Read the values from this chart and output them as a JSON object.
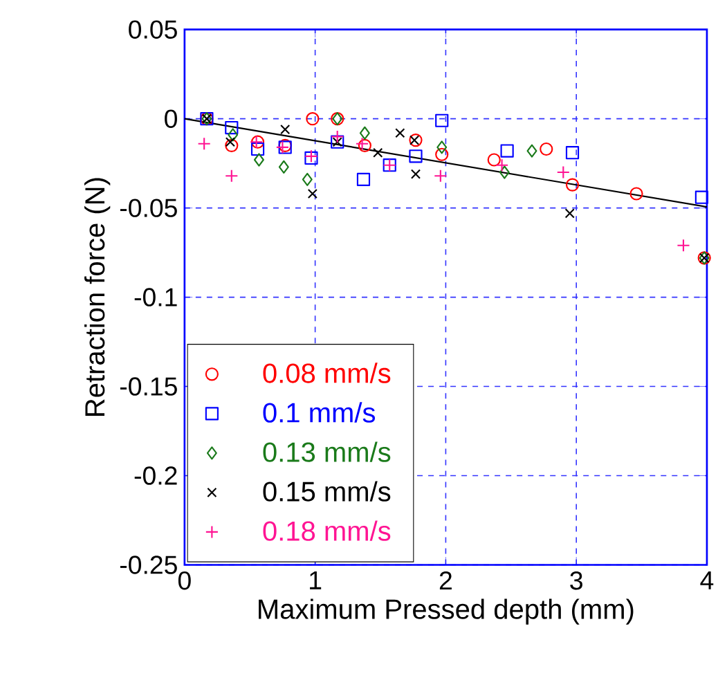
{
  "chart_data": {
    "type": "scatter",
    "xlabel": "Maximum Pressed depth (mm)",
    "ylabel": "Retraction force (N)",
    "xlim": [
      0,
      4
    ],
    "xticks": [
      0,
      1,
      2,
      3,
      4
    ],
    "ylim": [
      -0.25,
      0.05
    ],
    "yticks": [
      -0.25,
      -0.2,
      -0.15,
      -0.1,
      -0.05,
      0,
      0.05
    ],
    "grid": true,
    "legend": "bottom left",
    "series": [
      {
        "name": "0.08 mm/s",
        "color": "#ff0000",
        "marker": "circle",
        "x": [
          0.17,
          0.36,
          0.56,
          0.77,
          0.98,
          1.17,
          1.38,
          1.77,
          1.97,
          2.37,
          2.77,
          2.97,
          3.46,
          3.98
        ],
        "values": [
          0,
          -0.015,
          -0.013,
          -0.015,
          0,
          0,
          -0.015,
          -0.012,
          -0.02,
          -0.023,
          -0.017,
          -0.037,
          -0.042,
          -0.078
        ]
      },
      {
        "name": "0.1 mm/s",
        "color": "#0000ff",
        "marker": "square",
        "x": [
          0.17,
          0.36,
          0.56,
          0.77,
          0.97,
          1.17,
          1.37,
          1.57,
          1.77,
          1.97,
          2.47,
          2.97,
          3.96
        ],
        "values": [
          0,
          -0.005,
          -0.017,
          -0.016,
          -0.022,
          -0.013,
          -0.034,
          -0.026,
          -0.021,
          -0.001,
          -0.018,
          -0.019,
          -0.044
        ]
      },
      {
        "name": "0.13 mm/s",
        "color": "#1a7a1a",
        "marker": "diamond",
        "x": [
          0.17,
          0.37,
          0.57,
          0.76,
          0.94,
          1.17,
          1.38,
          1.97,
          2.45,
          2.66,
          3.98
        ],
        "values": [
          0,
          -0.009,
          -0.023,
          -0.027,
          -0.034,
          0,
          -0.008,
          -0.016,
          -0.03,
          -0.018,
          -0.078
        ]
      },
      {
        "name": "0.15 mm/s",
        "color": "#000000",
        "marker": "cross",
        "x": [
          0.17,
          0.35,
          0.77,
          0.98,
          1.17,
          1.48,
          1.65,
          1.76,
          1.77,
          2.95,
          3.98
        ],
        "values": [
          0,
          -0.013,
          -0.006,
          -0.042,
          -0.013,
          -0.019,
          -0.008,
          -0.012,
          -0.031,
          -0.053,
          -0.078
        ]
      },
      {
        "name": "0.18 mm/s",
        "color": "#ff1493",
        "marker": "plus",
        "x": [
          0.15,
          0.36,
          0.55,
          0.75,
          0.97,
          1.17,
          1.36,
          1.57,
          1.96,
          2.43,
          2.9,
          3.82
        ],
        "values": [
          -0.014,
          -0.032,
          -0.013,
          -0.016,
          -0.021,
          -0.01,
          -0.014,
          -0.026,
          -0.032,
          -0.026,
          -0.03,
          -0.071
        ]
      },
      {
        "type": "line",
        "color": "#000000",
        "marker": "none",
        "x": [
          0,
          4
        ],
        "values": [
          0,
          -0.0494
        ]
      }
    ]
  }
}
